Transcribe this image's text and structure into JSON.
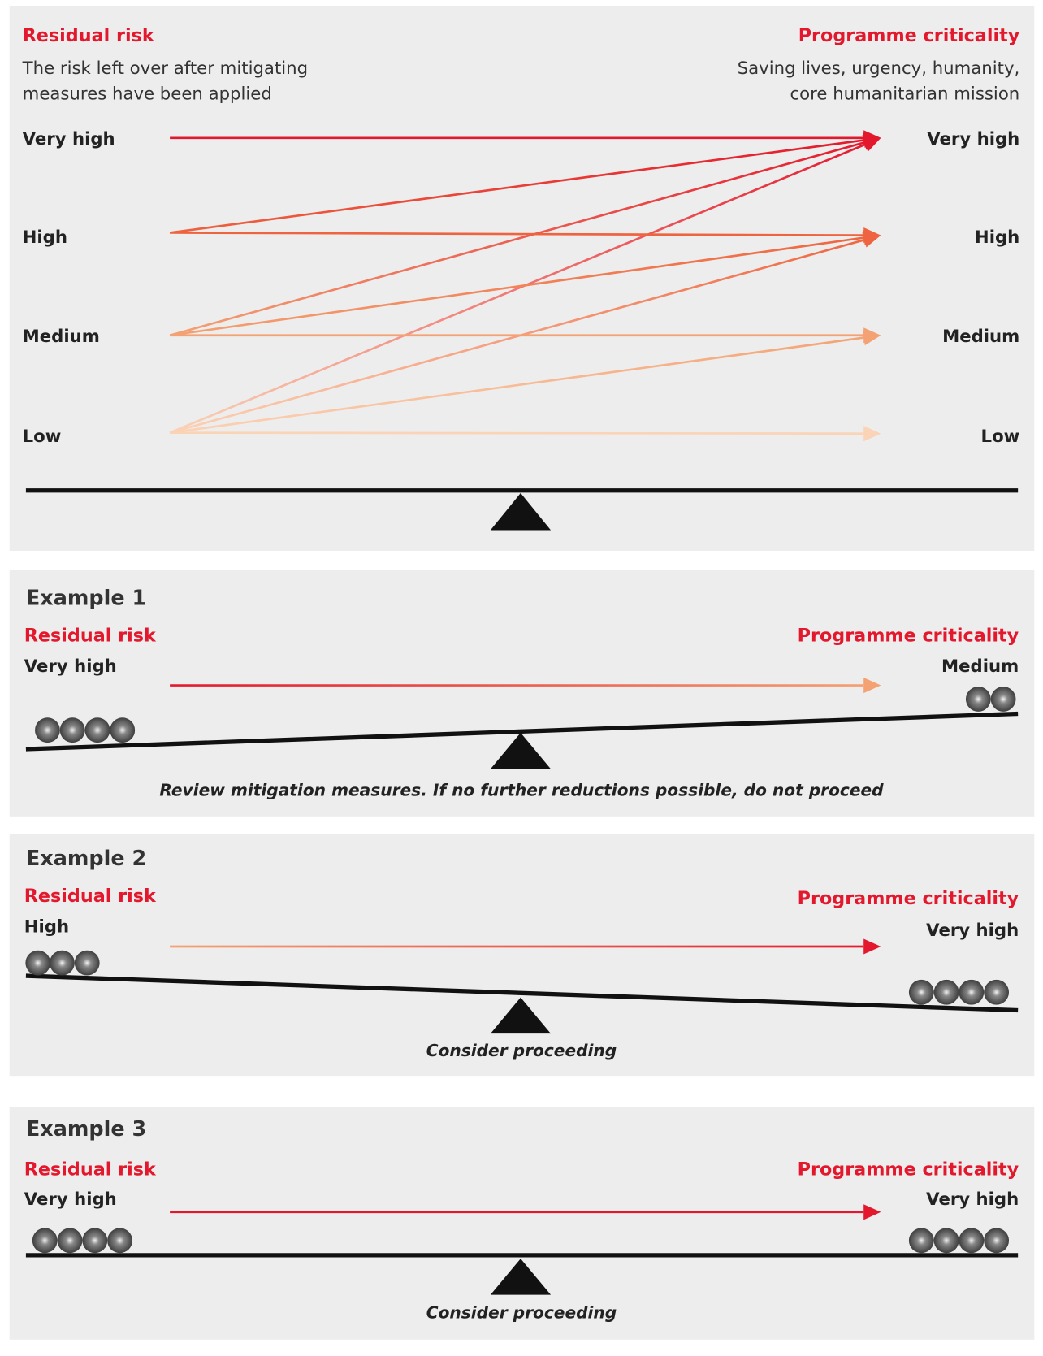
{
  "top": {
    "left_title": "Residual risk",
    "left_desc_lines": [
      "The risk left over after mitigating",
      "measures have been applied"
    ],
    "right_title": "Programme criticality",
    "right_desc_lines": [
      "Saving lives, urgency, humanity,",
      "core humanitarian mission"
    ],
    "left_levels": [
      "Very high",
      "High",
      "Medium",
      "Low"
    ],
    "right_levels": [
      "Very high",
      "High",
      "Medium",
      "Low"
    ]
  },
  "examples": [
    {
      "title": "Example 1",
      "left_title": "Residual risk",
      "left_level": "Very high",
      "right_title": "Programme criticality",
      "right_level": "Medium",
      "verdict": "Review mitigation measures. If no further reductions possible, do not proceed"
    },
    {
      "title": "Example 2",
      "left_title": "Residual risk",
      "left_level": "High",
      "right_title": "Programme criticality",
      "right_level": "Very high",
      "verdict": "Consider proceeding"
    },
    {
      "title": "Example 3",
      "left_title": "Residual risk",
      "left_level": "Very high",
      "right_title": "Programme criticality",
      "right_level": "Very high",
      "verdict": "Consider proceeding"
    }
  ]
}
